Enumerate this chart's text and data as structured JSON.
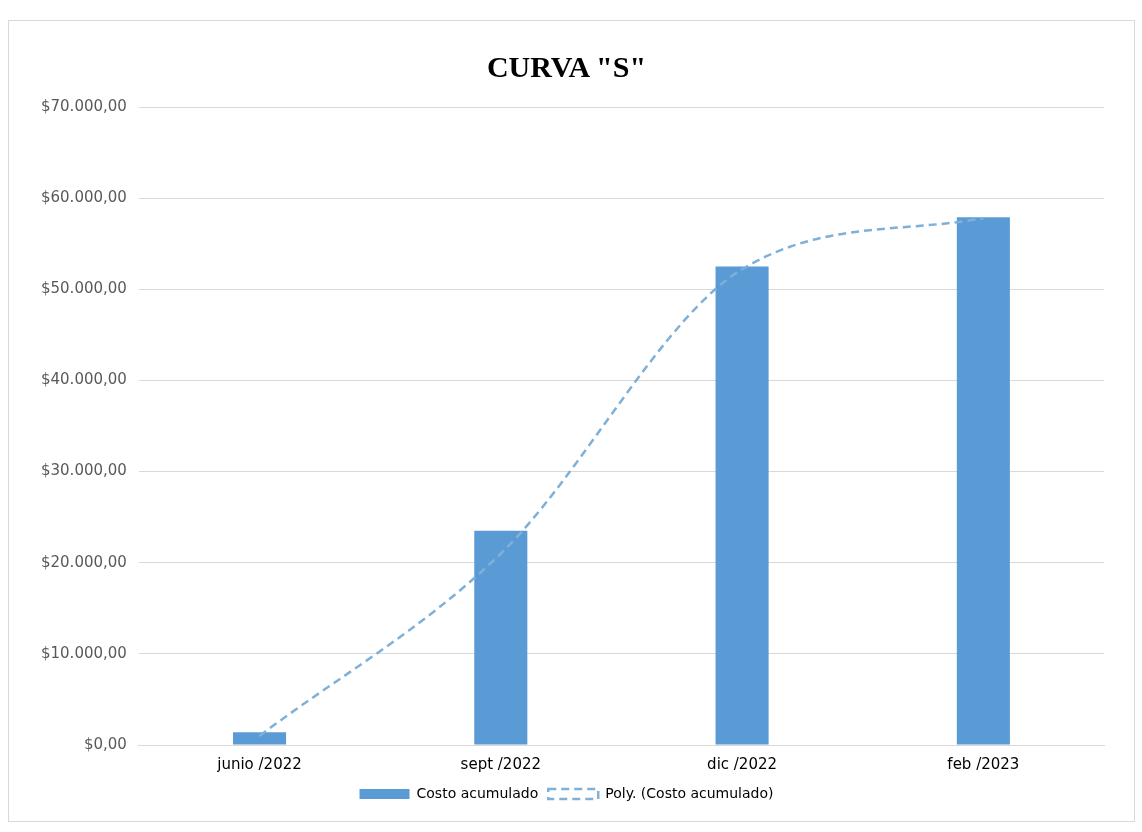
{
  "chart_data": {
    "type": "bar",
    "title": "CURVA \"S\"",
    "categories": [
      "junio /2022",
      "sept /2022",
      "dic /2022",
      "feb /2023"
    ],
    "series": [
      {
        "name": "Costo acumulado",
        "color": "#5b9bd5",
        "values": [
          1400,
          23500,
          52500,
          57900
        ]
      },
      {
        "name": "Poly. (Costo acumulado)",
        "type": "line",
        "color": "#7fb0d8",
        "line_style": "dashed",
        "marker": "none",
        "values": [
          1000,
          21000,
          52200,
          57800
        ]
      }
    ],
    "ylim": [
      0,
      70000
    ],
    "yticks": [
      {
        "value": 0,
        "label": "$0,00"
      },
      {
        "value": 10000,
        "label": "$10.000,00"
      },
      {
        "value": 20000,
        "label": "$20.000,00"
      },
      {
        "value": 30000,
        "label": "$30.000,00"
      },
      {
        "value": 40000,
        "label": "$40.000,00"
      },
      {
        "value": 50000,
        "label": "$50.000,00"
      },
      {
        "value": 60000,
        "label": "$60.000,00"
      },
      {
        "value": 70000,
        "label": "$70.000,00"
      }
    ],
    "grid": "y",
    "legend": "bottom"
  }
}
